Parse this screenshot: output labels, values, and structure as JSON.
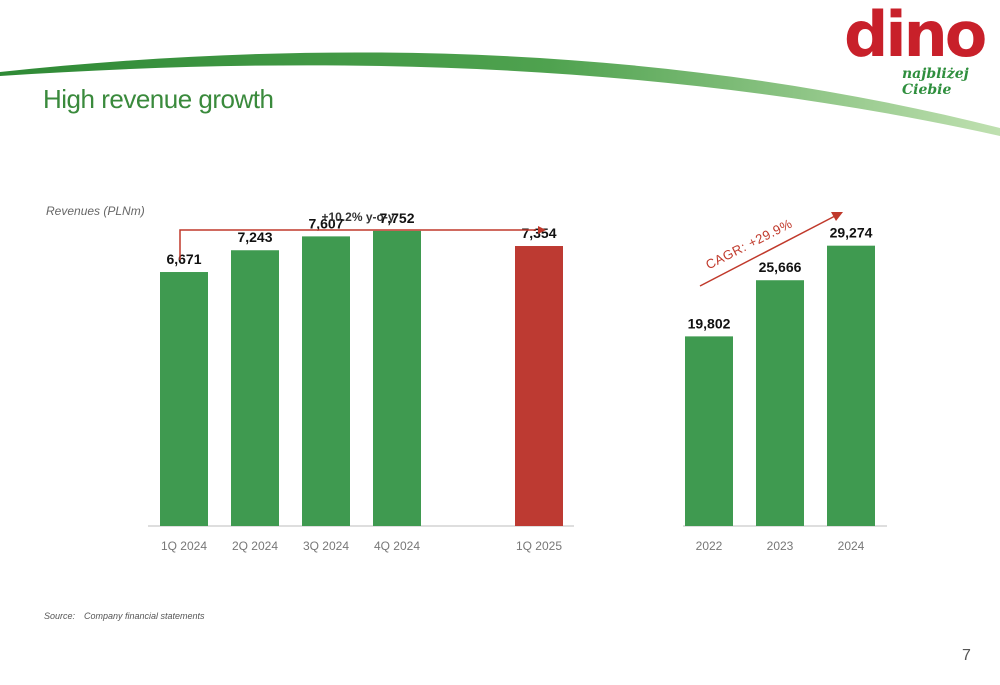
{
  "title": "High revenue growth",
  "subtitle": "Revenues (PLNm)",
  "logo": {
    "word": "dino",
    "tagline": "najbliżej Ciebie"
  },
  "colors": {
    "green": "#3f9a50",
    "red": "#bd3a32",
    "arrow": "#c0392b",
    "title": "#3a8a3c"
  },
  "chart_data": [
    {
      "type": "bar",
      "categories": [
        "1Q 2024",
        "2Q 2024",
        "3Q 2024",
        "4Q 2024",
        "1Q 2025"
      ],
      "values": [
        6671,
        7243,
        7607,
        7752,
        7354
      ],
      "value_labels": [
        "6,671",
        "7,243",
        "7,607",
        "7,752",
        "7,354"
      ],
      "highlight": [
        false,
        false,
        false,
        false,
        true
      ],
      "annotation": "+10.2% y-o-y",
      "ylim": [
        0,
        8300
      ]
    },
    {
      "type": "bar",
      "categories": [
        "2022",
        "2023",
        "2024"
      ],
      "values": [
        19802,
        25666,
        29274
      ],
      "value_labels": [
        "19,802",
        "25,666",
        "29,274"
      ],
      "annotation": "CAGR: +29.9%",
      "ylim": [
        0,
        33000
      ]
    }
  ],
  "source": {
    "label": "Source:",
    "text": "Company financial statements"
  },
  "page_number": "7"
}
